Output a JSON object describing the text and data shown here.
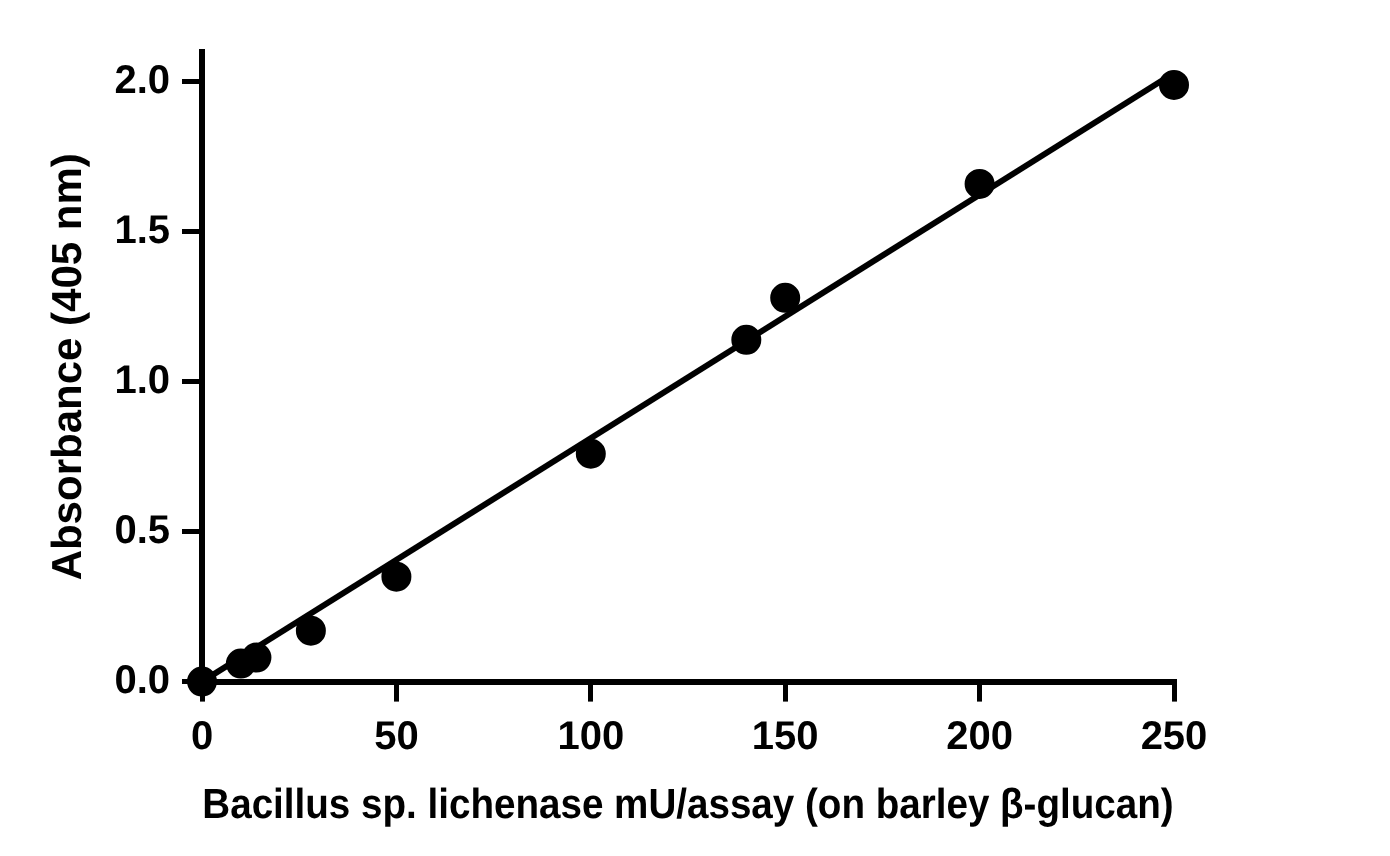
{
  "chart_data": {
    "type": "scatter",
    "xlabel": "Bacillus sp. lichenase mU/assay (on barley β-glucan)",
    "ylabel": "Absorbance (405 nm)",
    "x": [
      0,
      10,
      14,
      28,
      50,
      100,
      140,
      150,
      200,
      250
    ],
    "series": [
      {
        "color": "#000000",
        "marker": "circle",
        "values": [
          0,
          0.06,
          0.08,
          0.17,
          0.35,
          0.76,
          1.14,
          1.28,
          1.66,
          1.99
        ]
      },
      {
        "type": "line",
        "color": "#000000",
        "marker": "none",
        "x": [
          0,
          250
        ],
        "values": [
          0.0,
          2.03
        ]
      }
    ],
    "xlim": [
      0,
      250
    ],
    "xticks": [
      0,
      50,
      100,
      150,
      200,
      250
    ],
    "ylim": [
      0,
      2.1
    ],
    "yticks": [
      {
        "value": 0,
        "label": "0.0"
      },
      {
        "value": 0.5,
        "label": "0.5"
      },
      {
        "value": 1,
        "label": "1.0"
      },
      {
        "value": 1.5,
        "label": "1.5"
      },
      {
        "value": 2,
        "label": "2.0"
      }
    ],
    "grid": false,
    "legend": false
  }
}
